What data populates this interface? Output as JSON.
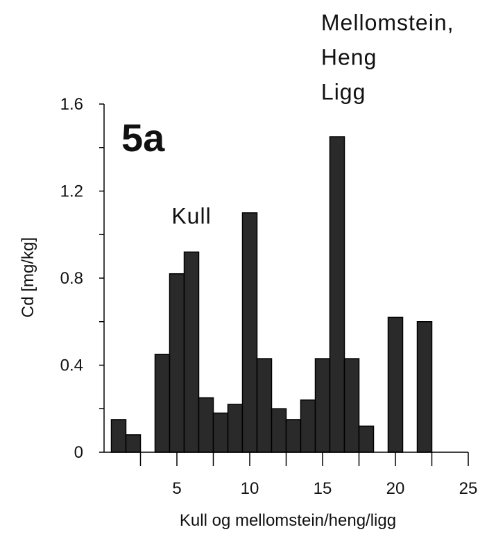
{
  "chart_data": {
    "type": "bar",
    "panel_label": "5a",
    "xlabel": "Kull og mellomstein/heng/ligg",
    "ylabel": "Cd [mg/kg]",
    "xlim": [
      0,
      25
    ],
    "ylim": [
      0,
      1.6
    ],
    "xticks": [
      5,
      10,
      15,
      20,
      25
    ],
    "xtick_labels": [
      "5",
      "10",
      "15",
      "20",
      "25"
    ],
    "yticks": [
      0,
      0.4,
      0.8,
      1.2,
      1.6
    ],
    "ytick_labels": [
      "0",
      "0.4",
      "0.8",
      "1.2",
      "1.6"
    ],
    "grid": false,
    "bar_color": "#2a2a2a",
    "x": [
      1,
      2,
      4,
      5,
      6,
      7,
      8,
      9,
      10,
      11,
      12,
      13,
      14,
      15,
      16,
      17,
      18,
      20,
      22
    ],
    "values": [
      0.15,
      0.08,
      0.45,
      0.82,
      0.92,
      0.25,
      0.18,
      0.22,
      1.1,
      0.43,
      0.2,
      0.15,
      0.24,
      0.43,
      1.45,
      0.43,
      0.12,
      0.62,
      0.6
    ],
    "annotations": [
      {
        "text": "Kull",
        "x": 6,
        "y": 1.05
      },
      {
        "text": "Mellomstein,",
        "x": 14.9,
        "y": 1.94
      },
      {
        "text": "Heng",
        "x": 14.9,
        "y": 1.78
      },
      {
        "text": "Ligg",
        "x": 14.9,
        "y": 1.62
      }
    ]
  }
}
